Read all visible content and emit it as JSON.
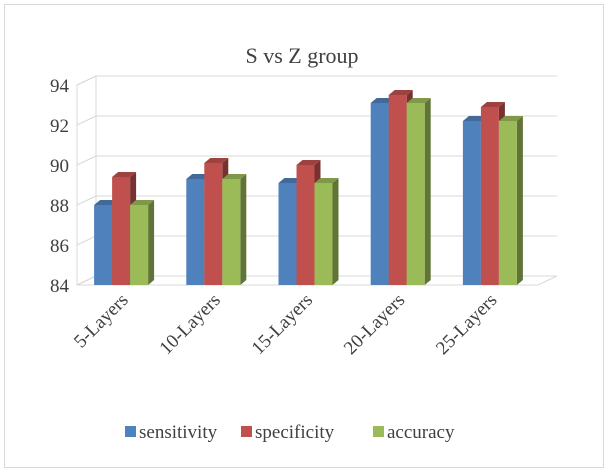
{
  "chart_data": {
    "type": "bar",
    "title": "S vs Z group",
    "xlabel": "",
    "ylabel": "",
    "categories": [
      "5-Layers",
      "10-Layers",
      "15-Layers",
      "20-Layers",
      "25-Layers"
    ],
    "series": [
      {
        "name": "sensitivity",
        "values": [
          88.0,
          89.3,
          89.1,
          93.1,
          92.2
        ],
        "color": "#4f81bd"
      },
      {
        "name": "specificity",
        "values": [
          89.4,
          90.1,
          90.0,
          93.5,
          92.9
        ],
        "color": "#c0504d"
      },
      {
        "name": "accuracy",
        "values": [
          88.0,
          89.3,
          89.1,
          93.1,
          92.2
        ],
        "color": "#9bbb59"
      }
    ],
    "ylim": [
      84,
      94
    ],
    "yticks": [
      84,
      86,
      88,
      90,
      92,
      94
    ],
    "grid": true,
    "legend_position": "bottom",
    "style": "3d-clustered-column"
  }
}
